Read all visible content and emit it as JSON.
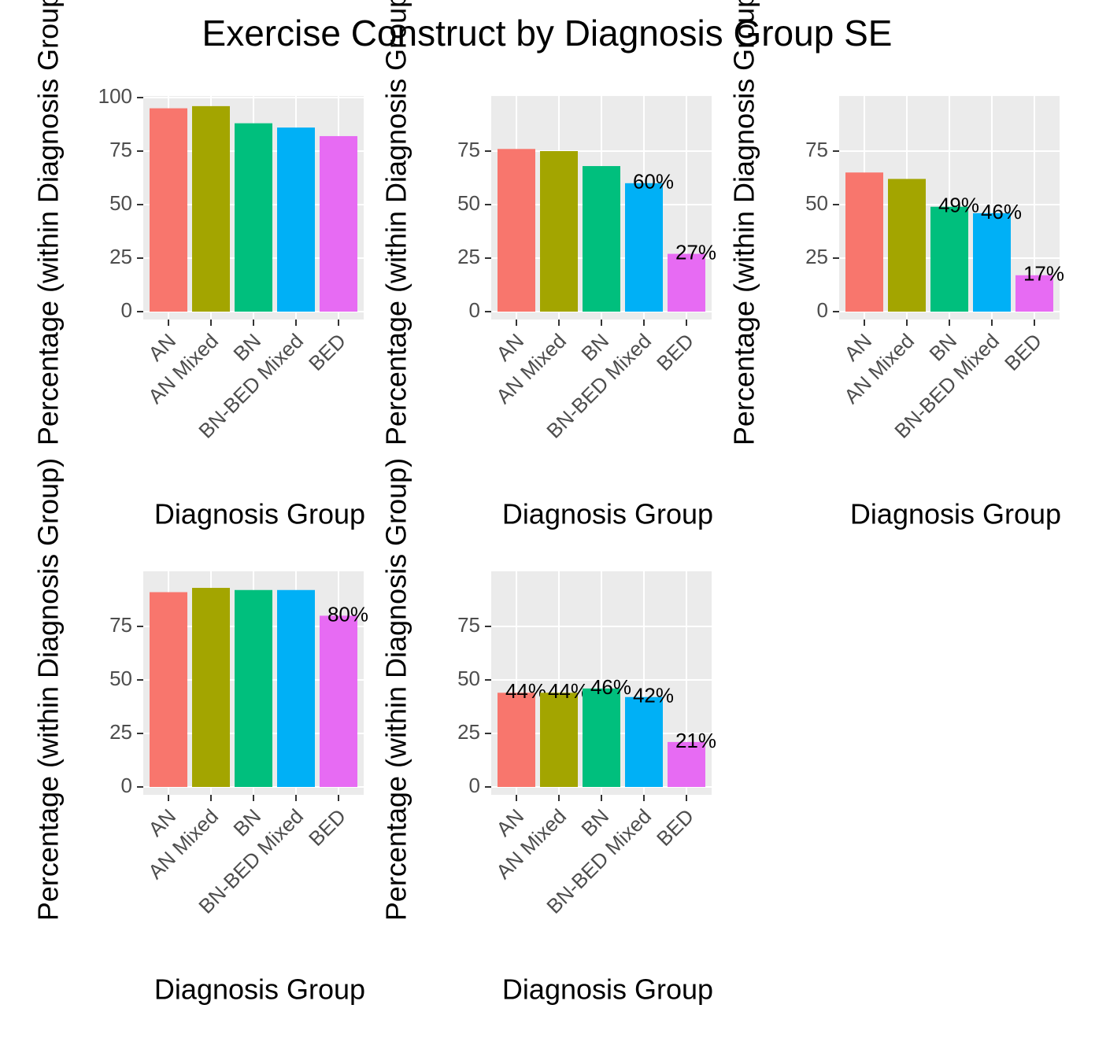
{
  "title": "Exercise Construct by Diagnosis Group SE",
  "chart_data": [
    {
      "type": "bar",
      "categories": [
        "AN",
        "AN Mixed",
        "BN",
        "BN-BED Mixed",
        "BED"
      ],
      "values": [
        95,
        96,
        88,
        86,
        82
      ],
      "colors": [
        "#f8766d",
        "#a3a500",
        "#00bf7d",
        "#00b0f6",
        "#e76bf3"
      ],
      "ylim": [
        0,
        100
      ],
      "yticks": [
        0,
        25,
        50,
        75,
        100
      ],
      "x_label": "Diagnosis Group",
      "y_label": "Percentage (within Diagnosis Group)"
    },
    {
      "type": "bar",
      "categories": [
        "AN",
        "AN Mixed",
        "BN",
        "BN-BED Mixed",
        "BED"
      ],
      "values": [
        76,
        75,
        68,
        60,
        27
      ],
      "value_labels": [
        null,
        null,
        null,
        "60%",
        "27%"
      ],
      "colors": [
        "#f8766d",
        "#a3a500",
        "#00bf7d",
        "#00b0f6",
        "#e76bf3"
      ],
      "ylim": [
        0,
        100
      ],
      "yticks": [
        0,
        25,
        50,
        75
      ],
      "x_label": "Diagnosis Group",
      "y_label": "Percentage (within Diagnosis Group)"
    },
    {
      "type": "bar",
      "categories": [
        "AN",
        "AN Mixed",
        "BN",
        "BN-BED Mixed",
        "BED"
      ],
      "values": [
        65,
        62,
        49,
        46,
        17
      ],
      "value_labels": [
        null,
        null,
        "49%",
        "46%",
        "17%"
      ],
      "colors": [
        "#f8766d",
        "#a3a500",
        "#00bf7d",
        "#00b0f6",
        "#e76bf3"
      ],
      "ylim": [
        0,
        100
      ],
      "yticks": [
        0,
        25,
        50,
        75
      ],
      "x_label": "Diagnosis Group",
      "y_label": "Percentage (within Diagnosis Group)"
    },
    {
      "type": "bar",
      "categories": [
        "AN",
        "AN Mixed",
        "BN",
        "BN-BED Mixed",
        "BED"
      ],
      "values": [
        91,
        93,
        92,
        92,
        80
      ],
      "value_labels": [
        null,
        null,
        null,
        null,
        "80%"
      ],
      "colors": [
        "#f8766d",
        "#a3a500",
        "#00bf7d",
        "#00b0f6",
        "#e76bf3"
      ],
      "ylim": [
        0,
        100
      ],
      "yticks": [
        0,
        25,
        50,
        75
      ],
      "x_label": "Diagnosis Group",
      "y_label": "Percentage (within Diagnosis Group)"
    },
    {
      "type": "bar",
      "categories": [
        "AN",
        "AN Mixed",
        "BN",
        "BN-BED Mixed",
        "BED"
      ],
      "values": [
        44,
        44,
        46,
        42,
        21
      ],
      "value_labels": [
        "44%",
        "44%",
        "46%",
        "42%",
        "21%"
      ],
      "colors": [
        "#f8766d",
        "#a3a500",
        "#00bf7d",
        "#00b0f6",
        "#e76bf3"
      ],
      "ylim": [
        0,
        100
      ],
      "yticks": [
        0,
        25,
        50,
        75
      ],
      "x_label": "Diagnosis Group",
      "y_label": "Percentage (within Diagnosis Group)"
    }
  ]
}
